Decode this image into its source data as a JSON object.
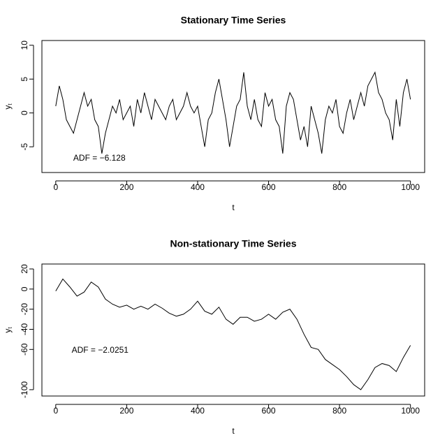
{
  "chart_data": [
    {
      "type": "line",
      "title": "Stationary Time Series",
      "xlabel": "t",
      "ylabel": "y",
      "ylabel_sub": "t",
      "color": "#000000",
      "x": [
        0,
        10,
        20,
        30,
        40,
        50,
        60,
        70,
        80,
        90,
        100,
        110,
        120,
        130,
        140,
        150,
        160,
        170,
        180,
        190,
        200,
        210,
        220,
        230,
        240,
        250,
        260,
        270,
        280,
        290,
        300,
        310,
        320,
        330,
        340,
        350,
        360,
        370,
        380,
        390,
        400,
        410,
        420,
        430,
        440,
        450,
        460,
        470,
        480,
        490,
        500,
        510,
        520,
        530,
        540,
        550,
        560,
        570,
        580,
        590,
        600,
        610,
        620,
        630,
        640,
        650,
        660,
        670,
        680,
        690,
        700,
        710,
        720,
        730,
        740,
        750,
        760,
        770,
        780,
        790,
        800,
        810,
        820,
        830,
        840,
        850,
        860,
        870,
        880,
        890,
        900,
        910,
        920,
        930,
        940,
        950,
        960,
        970,
        980,
        990,
        1000
      ],
      "values": [
        1,
        4,
        2,
        -1,
        -2,
        -3,
        -1,
        1,
        3,
        1,
        2,
        -1,
        -2,
        -6,
        -3,
        -1,
        1,
        0,
        2,
        -1,
        0,
        1,
        -2,
        2,
        0,
        3,
        1,
        -1,
        2,
        1,
        0,
        -1,
        1,
        2,
        -1,
        0,
        1,
        3,
        1,
        0,
        1,
        -2,
        -5,
        -1,
        0,
        3,
        5,
        2,
        -1,
        -5,
        -2,
        1,
        2,
        6,
        1,
        -1,
        2,
        -1,
        -2,
        3,
        1,
        2,
        -1,
        -2,
        -6,
        1,
        3,
        2,
        -1,
        -4,
        -2,
        -5,
        1,
        -1,
        -3,
        -6,
        -1,
        1,
        0,
        2,
        -2,
        -3,
        0,
        2,
        -1,
        1,
        3,
        1,
        4,
        5,
        6,
        3,
        2,
        0,
        -1,
        -4,
        2,
        -2,
        3,
        5,
        2
      ],
      "xlim": [
        -39,
        1040
      ],
      "ylim": [
        -8.8,
        10.7
      ],
      "xticks": [
        0,
        200,
        400,
        600,
        800,
        1000
      ],
      "yticks": [
        -5,
        0,
        5,
        10
      ],
      "annotations": [
        {
          "text": "ADF = −6.128",
          "x": 123,
          "y": -6.7
        }
      ]
    },
    {
      "type": "line",
      "title": "Non-stationary Time Series",
      "xlabel": "t",
      "ylabel": "y",
      "ylabel_sub": "t",
      "color": "#000000",
      "x": [
        0,
        20,
        40,
        60,
        80,
        100,
        120,
        140,
        160,
        180,
        200,
        220,
        240,
        260,
        280,
        300,
        320,
        340,
        360,
        380,
        400,
        420,
        440,
        460,
        480,
        500,
        520,
        540,
        560,
        580,
        600,
        620,
        640,
        660,
        680,
        700,
        720,
        740,
        760,
        780,
        800,
        820,
        840,
        860,
        880,
        900,
        920,
        940,
        960,
        980,
        1000
      ],
      "values": [
        -2,
        10,
        2,
        -7,
        -3,
        7,
        2,
        -10,
        -15,
        -18,
        -16,
        -20,
        -17,
        -20,
        -15,
        -19,
        -24,
        -27,
        -25,
        -20,
        -12,
        -22,
        -25,
        -18,
        -30,
        -35,
        -28,
        -28,
        -32,
        -30,
        -25,
        -30,
        -23,
        -20,
        -30,
        -45,
        -58,
        -60,
        -70,
        -75,
        -80,
        -87,
        -95,
        -100,
        -90,
        -78,
        -74,
        -76,
        -82,
        -68,
        -56
      ],
      "xlim": [
        -39,
        1040
      ],
      "ylim": [
        -106.3,
        24.9
      ],
      "xticks": [
        0,
        200,
        400,
        600,
        800,
        1000
      ],
      "yticks": [
        -100,
        -60,
        -40,
        -20,
        0,
        20
      ],
      "annotations": [
        {
          "text": "ADF = −2.0251",
          "x": 125,
          "y": -61
        }
      ]
    }
  ]
}
